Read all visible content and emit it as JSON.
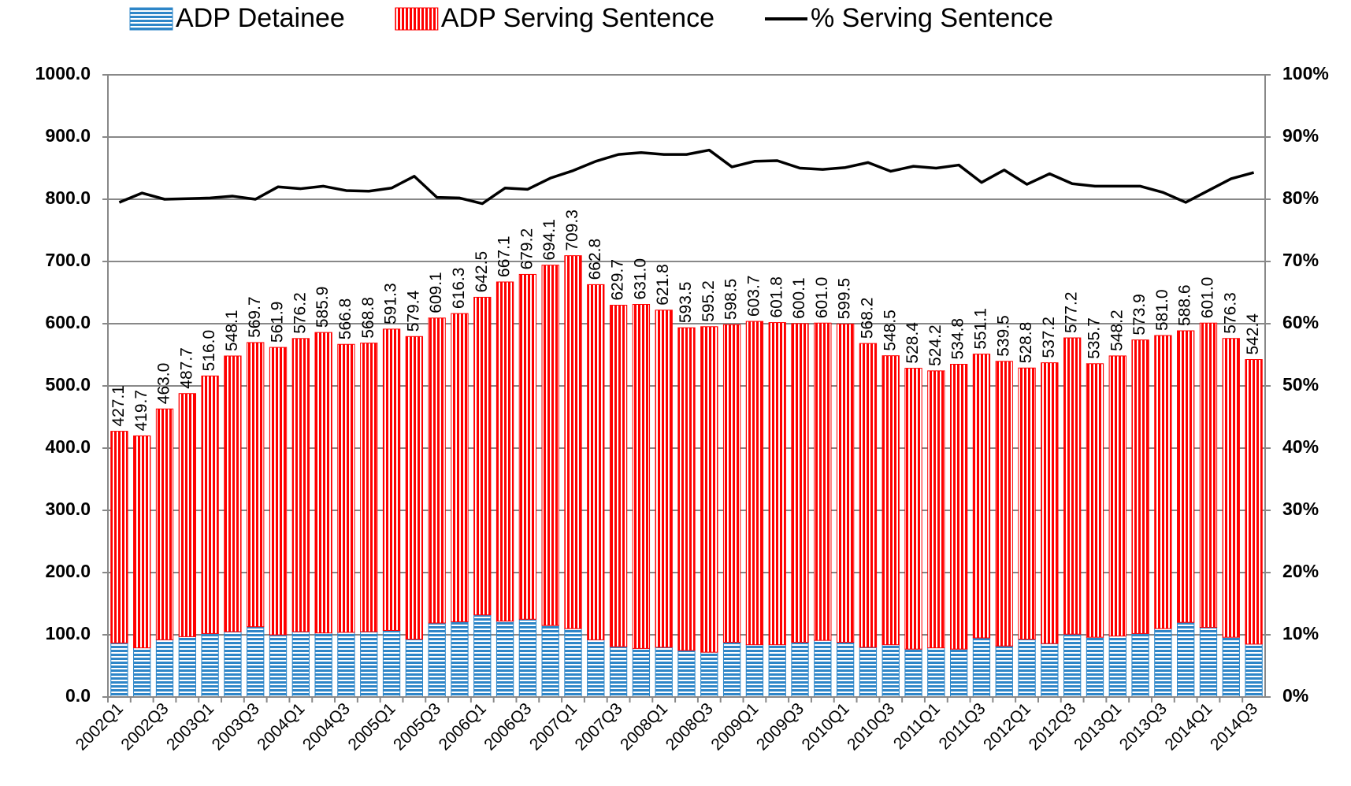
{
  "chart_data": {
    "type": "stacked_bar_line",
    "categories": [
      "2002Q1",
      null,
      "2002Q3",
      null,
      "2003Q1",
      null,
      "2003Q3",
      null,
      "2004Q1",
      null,
      "2004Q3",
      null,
      "2005Q1",
      null,
      "2005Q3",
      null,
      "2006Q1",
      null,
      "2006Q3",
      null,
      "2007Q1",
      null,
      "2007Q3",
      null,
      "2008Q1",
      null,
      "2008Q3",
      null,
      "2009Q1",
      null,
      "2009Q3",
      null,
      "2010Q1",
      null,
      "2010Q3",
      null,
      "2011Q1",
      null,
      "2011Q3",
      null,
      "2012Q1",
      null,
      "2012Q3",
      null,
      "2013Q1",
      null,
      "2013Q3",
      null,
      "2014Q1",
      null,
      "2014Q3"
    ],
    "series": [
      {
        "name": "ADP Detainee",
        "color": "#2e86c8",
        "kind": "bar",
        "values": [
          87,
          79,
          92,
          97,
          102,
          105,
          113,
          100,
          105,
          103,
          104,
          105,
          107,
          93,
          119,
          121,
          132,
          122,
          125,
          115,
          110,
          92,
          81,
          78,
          80,
          75,
          72,
          88,
          84,
          84,
          88,
          91,
          88,
          80,
          84,
          77,
          79,
          77,
          95,
          82,
          93,
          86,
          101,
          96,
          98,
          102,
          110,
          120,
          112,
          96,
          85
        ]
      },
      {
        "name": "ADP Serving Sentence",
        "color": "#ff0000",
        "kind": "bar",
        "values": [
          340.1,
          340.7,
          371.0,
          390.7,
          414.0,
          443.1,
          456.7,
          461.9,
          471.2,
          482.9,
          462.8,
          463.8,
          484.3,
          486.4,
          490.1,
          495.3,
          510.5,
          545.1,
          554.2,
          579.1,
          599.3,
          570.8,
          548.7,
          553.0,
          541.8,
          518.5,
          523.2,
          510.5,
          519.7,
          517.8,
          512.1,
          510.0,
          511.5,
          488.2,
          464.5,
          451.4,
          445.2,
          457.8,
          456.1,
          457.5,
          435.8,
          451.2,
          476.2,
          439.7,
          450.2,
          471.9,
          471.0,
          468.6,
          489.0,
          480.3,
          457.4
        ]
      },
      {
        "name": "% Serving Sentence",
        "color": "#000000",
        "kind": "line",
        "axis": "y2",
        "values": [
          79.5,
          81,
          80,
          80.1,
          80.2,
          80.5,
          80,
          82,
          81.7,
          82.1,
          81.4,
          81.3,
          81.8,
          83.7,
          80.3,
          80.2,
          79.3,
          81.8,
          81.6,
          83.4,
          84.6,
          86.1,
          87.2,
          87.5,
          87.2,
          87.2,
          87.9,
          85.2,
          86.1,
          86.2,
          85,
          84.8,
          85.1,
          85.9,
          84.5,
          85.3,
          85,
          85.5,
          82.7,
          84.7,
          82.4,
          84.1,
          82.5,
          82.1,
          82.1,
          82.1,
          81.1,
          79.5,
          81.4,
          83.3,
          84.3
        ]
      }
    ],
    "total_labels": [
      "427.1",
      "419.7",
      "463.0",
      "487.7",
      "516.0",
      "548.1",
      "569.7",
      "561.9",
      "576.2",
      "585.9",
      "566.8",
      "568.8",
      "591.3",
      "579.4",
      "609.1",
      "616.3",
      "642.5",
      "667.1",
      "679.2",
      "694.1",
      "709.3",
      "662.8",
      "629.7",
      "631.0",
      "621.8",
      "593.5",
      "595.2",
      "598.5",
      "603.7",
      "601.8",
      "600.1",
      "601.0",
      "599.5",
      "568.2",
      "548.5",
      "528.4",
      "524.2",
      "534.8",
      "551.1",
      "539.5",
      "528.8",
      "537.2",
      "577.2",
      "535.7",
      "548.2",
      "573.9",
      "581.0",
      "588.6",
      "601.0",
      "576.3",
      "542.4"
    ],
    "ylim": [
      0,
      1000
    ],
    "yticks": [
      {
        "value": 0,
        "label": "0.0"
      },
      {
        "value": 100,
        "label": "100.0"
      },
      {
        "value": 200,
        "label": "200.0"
      },
      {
        "value": 300,
        "label": "300.0"
      },
      {
        "value": 400,
        "label": "400.0"
      },
      {
        "value": 500,
        "label": "500.0"
      },
      {
        "value": 600,
        "label": "600.0"
      },
      {
        "value": 700,
        "label": "700.0"
      },
      {
        "value": 800,
        "label": "800.0"
      },
      {
        "value": 900,
        "label": "900.0"
      },
      {
        "value": 1000,
        "label": "1000.0"
      }
    ],
    "y2lim": [
      0,
      100
    ],
    "y2ticks": [
      {
        "value": 0,
        "label": "0%"
      },
      {
        "value": 10,
        "label": "10%"
      },
      {
        "value": 20,
        "label": "20%"
      },
      {
        "value": 30,
        "label": "30%"
      },
      {
        "value": 40,
        "label": "40%"
      },
      {
        "value": 50,
        "label": "50%"
      },
      {
        "value": 60,
        "label": "60%"
      },
      {
        "value": 70,
        "label": "70%"
      },
      {
        "value": 80,
        "label": "80%"
      },
      {
        "value": 90,
        "label": "90%"
      },
      {
        "value": 100,
        "label": "100%"
      }
    ],
    "grid": true,
    "legend": "top"
  }
}
